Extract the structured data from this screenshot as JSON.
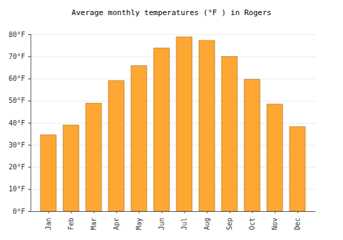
{
  "chart_data": {
    "type": "bar",
    "title": "Average monthly temperatures (°F ) in Rogers",
    "categories": [
      "Jan",
      "Feb",
      "Mar",
      "Apr",
      "May",
      "Jun",
      "Jul",
      "Aug",
      "Sep",
      "Oct",
      "Nov",
      "Dec"
    ],
    "values": [
      34.5,
      39,
      48.8,
      59,
      65.8,
      73.8,
      78.8,
      77.2,
      70,
      59.6,
      48.4,
      38.2
    ],
    "color": "#ffa733",
    "ylim": [
      0,
      80
    ],
    "yticks": [
      {
        "value": 0,
        "label": "0°F"
      },
      {
        "value": 10,
        "label": "10°F"
      },
      {
        "value": 20,
        "label": "20°F"
      },
      {
        "value": 30,
        "label": "30°F"
      },
      {
        "value": 40,
        "label": "40°F"
      },
      {
        "value": 50,
        "label": "50°F"
      },
      {
        "value": 60,
        "label": "60°F"
      },
      {
        "value": 70,
        "label": "70°F"
      },
      {
        "value": 80,
        "label": "80°F"
      }
    ],
    "grid": true
  }
}
